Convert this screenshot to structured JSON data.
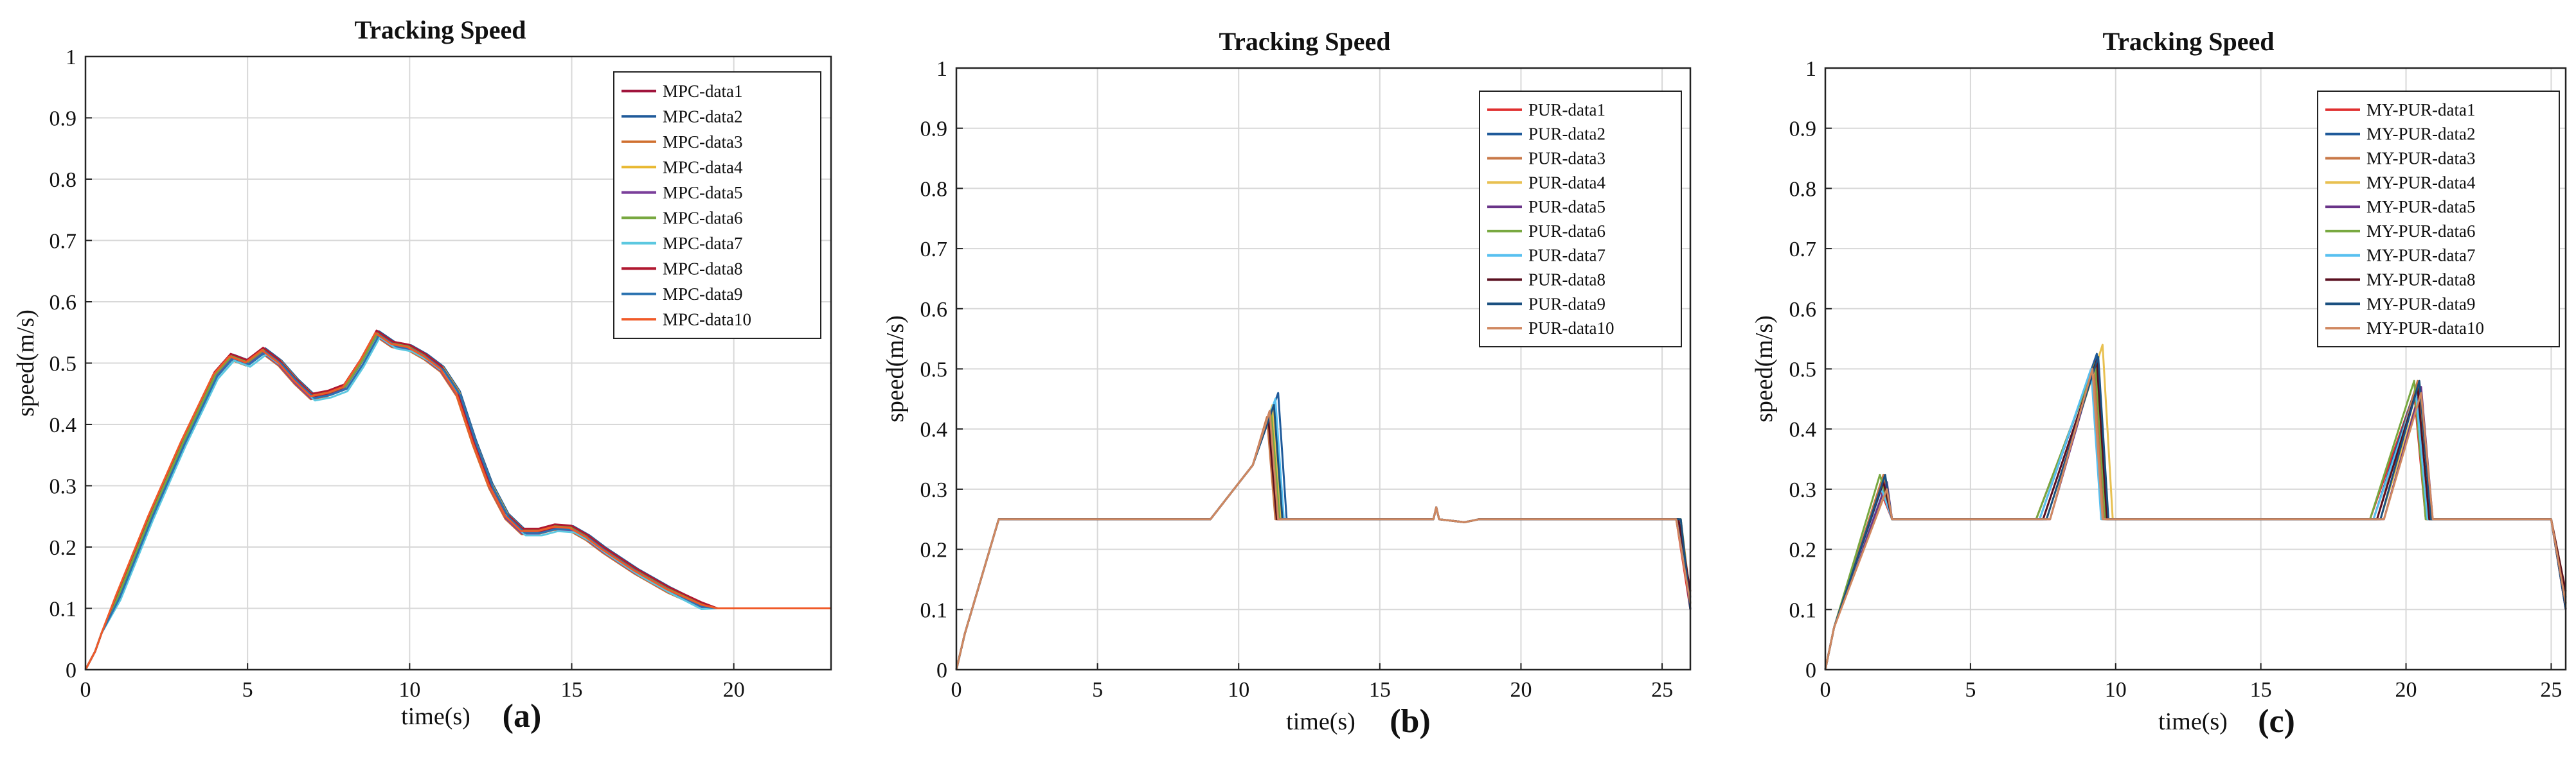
{
  "chart_data": [
    {
      "type": "line",
      "panel": "(a)",
      "title": "Tracking Speed",
      "xlabel": "time(s)",
      "ylabel": "speed(m/s)",
      "xlim": [
        0,
        23
      ],
      "ylim": [
        0,
        1
      ],
      "xticks": [
        0,
        5,
        10,
        15,
        20
      ],
      "xtick_labels": [
        "0",
        "5",
        "10",
        "15",
        "20"
      ],
      "yticks": [
        0,
        0.1,
        0.2,
        0.3,
        0.4,
        0.5,
        0.6,
        0.7,
        0.8,
        0.9,
        1
      ],
      "ytick_labels": [
        "0",
        "0.1",
        "0.2",
        "0.3",
        "0.4",
        "0.5",
        "0.6",
        "0.7",
        "0.8",
        "0.9",
        "1"
      ],
      "grid": true,
      "legend_position": "top-right",
      "base": [
        [
          0,
          0
        ],
        [
          0.3,
          0.03
        ],
        [
          0.5,
          0.06
        ],
        [
          1,
          0.12
        ],
        [
          2,
          0.25
        ],
        [
          3,
          0.37
        ],
        [
          4,
          0.48
        ],
        [
          4.5,
          0.51
        ],
        [
          5,
          0.5
        ],
        [
          5.5,
          0.52
        ],
        [
          6,
          0.5
        ],
        [
          6.5,
          0.47
        ],
        [
          7,
          0.445
        ],
        [
          7.5,
          0.45
        ],
        [
          8,
          0.46
        ],
        [
          8.5,
          0.5
        ],
        [
          9,
          0.548
        ],
        [
          9.5,
          0.53
        ],
        [
          10,
          0.525
        ],
        [
          10.5,
          0.51
        ],
        [
          11,
          0.49
        ],
        [
          11.5,
          0.45
        ],
        [
          12,
          0.37
        ],
        [
          12.5,
          0.3
        ],
        [
          13,
          0.25
        ],
        [
          13.5,
          0.225
        ],
        [
          14,
          0.225
        ],
        [
          14.5,
          0.232
        ],
        [
          15,
          0.23
        ],
        [
          15.5,
          0.215
        ],
        [
          16,
          0.195
        ],
        [
          17,
          0.16
        ],
        [
          18,
          0.13
        ],
        [
          19,
          0.105
        ],
        [
          19.5,
          0.1
        ],
        [
          23,
          0.1
        ]
      ],
      "series": [
        {
          "name": "MPC-data1",
          "color": "#a0143c",
          "y_offset": 0.0,
          "x_shift": 0.0
        },
        {
          "name": "MPC-data2",
          "color": "#1f5a9a",
          "y_offset": 0.004,
          "x_shift": 0.05
        },
        {
          "name": "MPC-data3",
          "color": "#d07030",
          "y_offset": -0.004,
          "x_shift": -0.05
        },
        {
          "name": "MPC-data4",
          "color": "#e8b830",
          "y_offset": 0.003,
          "x_shift": 0.03
        },
        {
          "name": "MPC-data5",
          "color": "#7a3f9a",
          "y_offset": -0.003,
          "x_shift": -0.03
        },
        {
          "name": "MPC-data6",
          "color": "#78a840",
          "y_offset": 0.002,
          "x_shift": 0.02
        },
        {
          "name": "MPC-data7",
          "color": "#5cc8e0",
          "y_offset": -0.006,
          "x_shift": 0.08
        },
        {
          "name": "MPC-data8",
          "color": "#b01830",
          "y_offset": 0.005,
          "x_shift": -0.02
        },
        {
          "name": "MPC-data9",
          "color": "#2a72b0",
          "y_offset": -0.002,
          "x_shift": 0.06
        },
        {
          "name": "MPC-data10",
          "color": "#f05a28",
          "y_offset": 0.001,
          "x_shift": -0.06
        }
      ]
    },
    {
      "type": "line",
      "panel": "(b)",
      "title": "Tracking Speed",
      "xlabel": "time(s)",
      "ylabel": "speed(m/s)",
      "xlim": [
        0,
        26
      ],
      "ylim": [
        0,
        1
      ],
      "xticks": [
        0,
        5,
        10,
        15,
        20,
        25
      ],
      "xtick_labels": [
        "0",
        "5",
        "10",
        "15",
        "20",
        "25"
      ],
      "yticks": [
        0,
        0.1,
        0.2,
        0.3,
        0.4,
        0.5,
        0.6,
        0.7,
        0.8,
        0.9,
        1
      ],
      "ytick_labels": [
        "0",
        "0.1",
        "0.2",
        "0.3",
        "0.4",
        "0.5",
        "0.6",
        "0.7",
        "0.8",
        "0.9",
        "1"
      ],
      "grid": true,
      "legend_position": "top-right",
      "base": [
        [
          0,
          0
        ],
        [
          0.3,
          0.06
        ],
        [
          1.5,
          0.25
        ],
        [
          9,
          0.25
        ],
        [
          9.5,
          0.28
        ],
        [
          10,
          0.31
        ],
        [
          10.5,
          0.34
        ],
        [
          11.1,
          0.43
        ],
        [
          11.4,
          0.25
        ],
        [
          16.9,
          0.25
        ],
        [
          17,
          0.27
        ],
        [
          17.1,
          0.25
        ],
        [
          18,
          0.245
        ],
        [
          18.5,
          0.25
        ],
        [
          25.5,
          0.25
        ],
        [
          26,
          0.1
        ]
      ],
      "series": [
        {
          "name": "PUR-data1",
          "color": "#e03030",
          "peak": 0.43,
          "peak_t": 11.1
        },
        {
          "name": "PUR-data2",
          "color": "#1f5a9a",
          "peak": 0.46,
          "peak_t": 11.4
        },
        {
          "name": "PUR-data3",
          "color": "#c87848",
          "peak": 0.42,
          "peak_t": 11.0
        },
        {
          "name": "PUR-data4",
          "color": "#e8c050",
          "peak": 0.44,
          "peak_t": 11.2
        },
        {
          "name": "PUR-data5",
          "color": "#6a3488",
          "peak": 0.43,
          "peak_t": 11.1
        },
        {
          "name": "PUR-data6",
          "color": "#78a840",
          "peak": 0.43,
          "peak_t": 11.15
        },
        {
          "name": "PUR-data7",
          "color": "#58c0f0",
          "peak": 0.45,
          "peak_t": 11.3
        },
        {
          "name": "PUR-data8",
          "color": "#5a1020",
          "peak": 0.42,
          "peak_t": 11.05
        },
        {
          "name": "PUR-data9",
          "color": "#1a5080",
          "peak": 0.44,
          "peak_t": 11.25
        },
        {
          "name": "PUR-data10",
          "color": "#d08860",
          "peak": 0.43,
          "peak_t": 11.1
        }
      ]
    },
    {
      "type": "line",
      "panel": "(c)",
      "title": "Tracking Speed",
      "xlabel": "time(s)",
      "ylabel": "speed(m/s)",
      "xlim": [
        0,
        25.5
      ],
      "ylim": [
        0,
        1
      ],
      "xticks": [
        0,
        5,
        10,
        15,
        20,
        25
      ],
      "xtick_labels": [
        "0",
        "5",
        "10",
        "15",
        "20",
        "25"
      ],
      "yticks": [
        0,
        0.1,
        0.2,
        0.3,
        0.4,
        0.5,
        0.6,
        0.7,
        0.8,
        0.9,
        1
      ],
      "ytick_labels": [
        "0",
        "0.1",
        "0.2",
        "0.3",
        "0.4",
        "0.5",
        "0.6",
        "0.7",
        "0.8",
        "0.9",
        "1"
      ],
      "grid": true,
      "legend_position": "top-right",
      "base": [
        [
          0,
          0
        ],
        [
          0.3,
          0.07
        ],
        [
          2,
          0.32
        ],
        [
          2.3,
          0.25
        ],
        [
          7.5,
          0.25
        ],
        [
          9.3,
          0.52
        ],
        [
          9.7,
          0.25
        ],
        [
          19,
          0.25
        ],
        [
          20.4,
          0.475
        ],
        [
          20.8,
          0.25
        ],
        [
          25,
          0.25
        ],
        [
          25.5,
          0.1
        ]
      ],
      "series": [
        {
          "name": "MY-PUR-data1",
          "color": "#e03030",
          "peak": 0.51,
          "peak_t": 9.3
        },
        {
          "name": "MY-PUR-data2",
          "color": "#1f5a9a",
          "peak": 0.525,
          "peak_t": 9.35
        },
        {
          "name": "MY-PUR-data3",
          "color": "#c87848",
          "peak": 0.5,
          "peak_t": 9.25
        },
        {
          "name": "MY-PUR-data4",
          "color": "#e8c050",
          "peak": 0.54,
          "peak_t": 9.55
        },
        {
          "name": "MY-PUR-data5",
          "color": "#6a3488",
          "peak": 0.51,
          "peak_t": 9.3
        },
        {
          "name": "MY-PUR-data6",
          "color": "#78a840",
          "peak": 0.51,
          "peak_t": 9.3
        },
        {
          "name": "MY-PUR-data7",
          "color": "#58c0f0",
          "peak": 0.5,
          "peak_t": 9.15
        },
        {
          "name": "MY-PUR-data8",
          "color": "#5a1020",
          "peak": 0.515,
          "peak_t": 9.35
        },
        {
          "name": "MY-PUR-data9",
          "color": "#1a5080",
          "peak": 0.52,
          "peak_t": 9.4
        },
        {
          "name": "MY-PUR-data10",
          "color": "#d08860",
          "peak": 0.5,
          "peak_t": 9.2
        }
      ]
    }
  ]
}
